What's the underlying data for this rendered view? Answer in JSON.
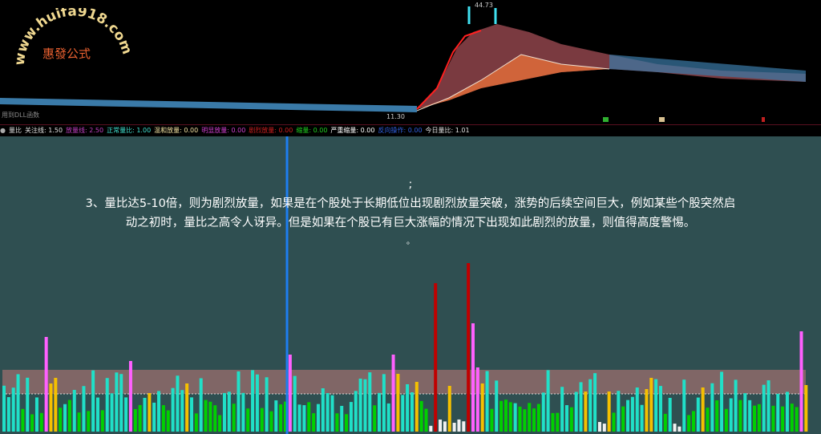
{
  "watermark": {
    "url": "www.huifa918.com",
    "brand": "惠發公式"
  },
  "price_chart": {
    "high_label": "44.73",
    "low_label": "11.30",
    "footer": "用到DLL函数"
  },
  "indicator": {
    "name": "量比",
    "items": [
      {
        "label": "关注线: 1.50",
        "color": "#e0e0e0"
      },
      {
        "label": "放量线: 2.50",
        "color": "#c040c0"
      },
      {
        "label": "正常量比: 1.00",
        "color": "#40e0d0"
      },
      {
        "label": "温和放量: 0.00",
        "color": "#f0e0a0"
      },
      {
        "label": "明显放量: 0.00",
        "color": "#d040d0"
      },
      {
        "label": "剧烈放量: 0.00",
        "color": "#d02020"
      },
      {
        "label": "缩量: 0.00",
        "color": "#20d020"
      },
      {
        "label": "严重缩量: 0.00",
        "color": "#ffffff"
      },
      {
        "label": "反向操作: 0.00",
        "color": "#3060e0"
      },
      {
        "label": "今日量比: 1.01",
        "color": "#e0e0e0"
      }
    ]
  },
  "note": {
    "line0": ";",
    "line1": "3、量比达5-10倍，则为剧烈放量，如果是在个股处于长期低位出现剧烈放量突破，涨势的后续空间巨大，例如某些个股突然启",
    "line2": "动之初时，量比之高令人讶异。但是如果在个股已有巨大涨幅的情况下出现如此剧烈的放量，则值得高度警惕。",
    "line3": "。"
  },
  "colors": {
    "panel_bg": "#2f4f51",
    "band": "#8a6868",
    "normal": "#20e0c8",
    "shrink": "#00d000",
    "mild": "#f5c000",
    "obvious": "#ff60ff",
    "strong": "#c00000",
    "severe": "#f0f0f0",
    "cursor": "#1e7ef0"
  }
}
